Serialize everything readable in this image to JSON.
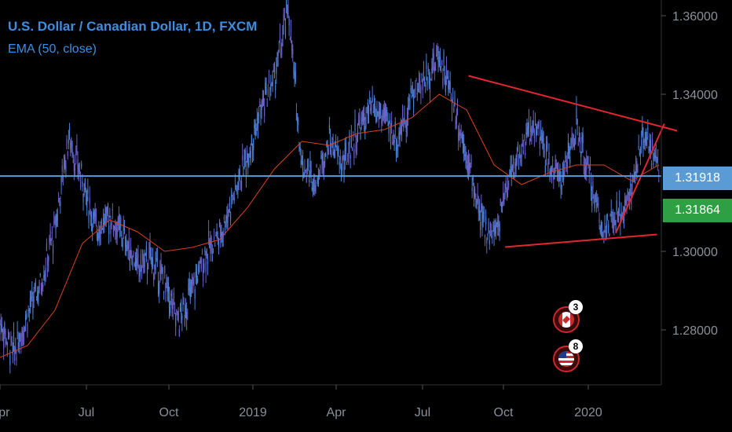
{
  "header": {
    "title": "U.S. Dollar / Canadian Dollar, 1D, FXCM",
    "indicator": "EMA (50, close)"
  },
  "price_tags": [
    {
      "value": "1.31918",
      "color": "#5b9bd5"
    },
    {
      "value": "1.31864",
      "color": "#2ea043"
    }
  ],
  "events": [
    {
      "icon": "canada-flag-icon",
      "count": "3"
    },
    {
      "icon": "us-flag-icon",
      "count": "8"
    }
  ],
  "colors": {
    "candles": "#4a7fd8",
    "ema": "#d9421c",
    "trendlines": "#e3262f",
    "price_line": "#5b9bd5",
    "background": "#000000"
  },
  "chart_data": {
    "type": "line",
    "title": "U.S. Dollar / Canadian Dollar, 1D, FXCM",
    "x_ticks": [
      "Apr",
      "Jul",
      "Oct",
      "2019",
      "Apr",
      "Jul",
      "Oct",
      "2020"
    ],
    "y_ticks": [
      "1.36000",
      "1.34000",
      "1.30000",
      "1.28000"
    ],
    "ylim": [
      1.264,
      1.365
    ],
    "current_price": 1.31918,
    "series": [
      {
        "kind": "price",
        "x_days": [
          0,
          15,
          30,
          45,
          60,
          75,
          90,
          105,
          120,
          135,
          150,
          165,
          180,
          195,
          210,
          225,
          240,
          255,
          270,
          285,
          300,
          315,
          330,
          345,
          360,
          375,
          390,
          405,
          420,
          435,
          450,
          465,
          480,
          495,
          510,
          525,
          540,
          555,
          570,
          585,
          600,
          615,
          630,
          645,
          660,
          675,
          690,
          705,
          720
        ],
        "values": [
          1.282,
          1.274,
          1.284,
          1.292,
          1.306,
          1.329,
          1.318,
          1.306,
          1.309,
          1.304,
          1.296,
          1.298,
          1.292,
          1.282,
          1.29,
          1.3,
          1.304,
          1.314,
          1.324,
          1.336,
          1.344,
          1.362,
          1.322,
          1.318,
          1.328,
          1.322,
          1.33,
          1.336,
          1.334,
          1.328,
          1.34,
          1.344,
          1.35,
          1.338,
          1.325,
          1.308,
          1.304,
          1.318,
          1.326,
          1.332,
          1.322,
          1.319,
          1.331,
          1.318,
          1.305,
          1.308,
          1.316,
          1.33,
          1.32
        ]
      },
      {
        "name": "EMA (50, close)",
        "kind": "ema",
        "x_days": [
          0,
          30,
          60,
          90,
          120,
          150,
          180,
          210,
          240,
          270,
          300,
          330,
          360,
          390,
          420,
          450,
          480,
          510,
          540,
          570,
          600,
          630,
          660,
          690,
          720
        ],
        "values": [
          1.273,
          1.276,
          1.285,
          1.302,
          1.308,
          1.305,
          1.3,
          1.301,
          1.303,
          1.311,
          1.321,
          1.328,
          1.327,
          1.33,
          1.331,
          1.334,
          1.34,
          1.336,
          1.322,
          1.317,
          1.32,
          1.322,
          1.322,
          1.318,
          1.322
        ]
      }
    ],
    "trendlines": [
      {
        "x1": 512,
        "y1": 1.3447,
        "x2": 740,
        "y2": 1.3307
      },
      {
        "x1": 552,
        "y1": 1.3011,
        "x2": 718,
        "y2": 1.3043
      },
      {
        "x1": 673,
        "y1": 1.3047,
        "x2": 726,
        "y2": 1.3325
      }
    ]
  }
}
